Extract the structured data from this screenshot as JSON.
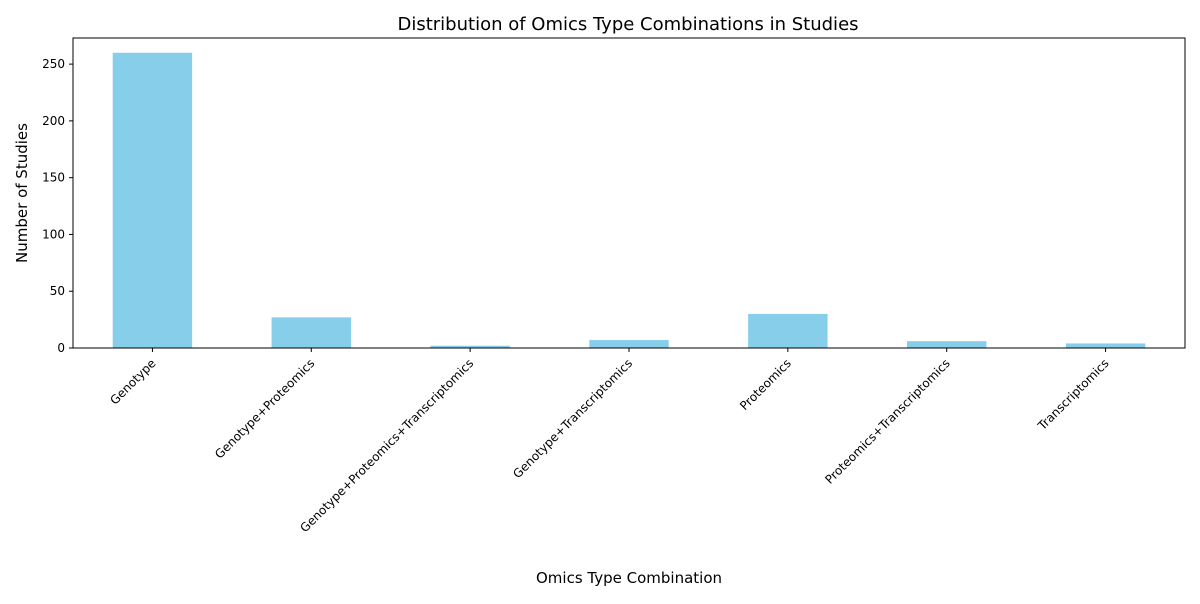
{
  "chart_data": {
    "type": "bar",
    "title": "Distribution of Omics Type Combinations in Studies",
    "xlabel": "Omics Type Combination",
    "ylabel": "Number of Studies",
    "categories": [
      "Genotype",
      "Genotype+Proteomics",
      "Genotype+Proteomics+Transcriptomics",
      "Genotype+Transcriptomics",
      "Proteomics",
      "Proteomics+Transcriptomics",
      "Transcriptomics"
    ],
    "values": [
      260,
      27,
      2,
      7,
      30,
      6,
      4
    ],
    "ylim": [
      0,
      273
    ],
    "yticks": [
      0,
      50,
      100,
      150,
      200,
      250
    ],
    "grid": false,
    "legend": "none",
    "bar_color": "#87ceeb"
  }
}
